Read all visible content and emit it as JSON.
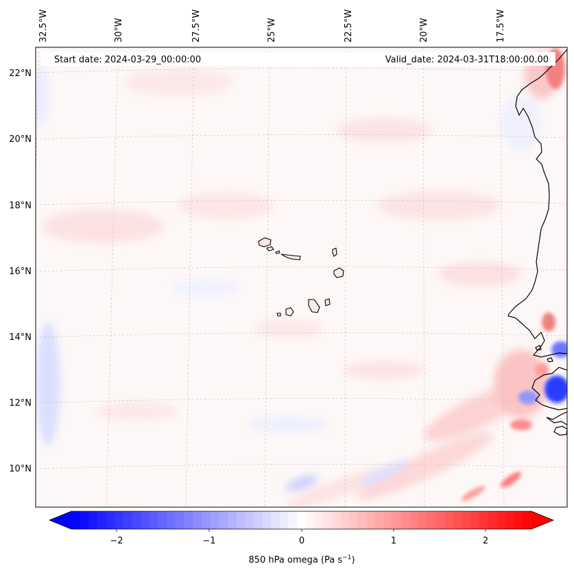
{
  "map": {
    "start_date": "Start date: 2024-03-29_00:00:00",
    "valid_date": "Valid_date: 2024-03-31T18:00:00.00",
    "lon_labels": [
      "32.5°W",
      "30°W",
      "27.5°W",
      "25°W",
      "22.5°W",
      "20°W",
      "17.5°W"
    ],
    "lat_labels": [
      "22°N",
      "20°N",
      "18°N",
      "16°N",
      "14°N",
      "12°N",
      "10°N"
    ],
    "colormap": "bwr",
    "field": "850 hPa omega"
  },
  "colorbar": {
    "label": "850 hPa omega (Pa s",
    "label_exp": "−1",
    "label_close": ")",
    "ticks": [
      "−2",
      "−1",
      "0",
      "1",
      "2"
    ],
    "min": -2.6,
    "max": 2.6,
    "levels": 53,
    "neg_color": "#0000ff",
    "mid_color": "#ffffff",
    "pos_color": "#ff0000"
  }
}
